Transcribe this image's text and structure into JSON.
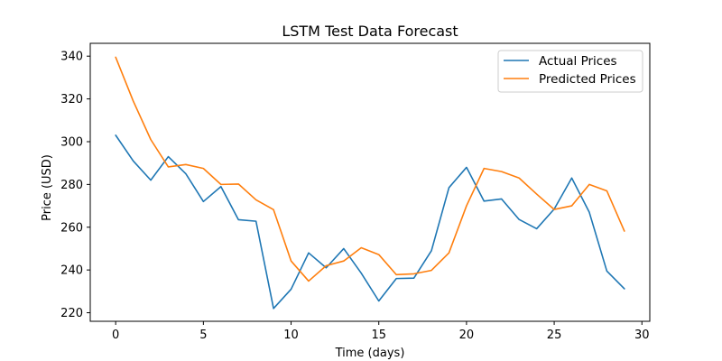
{
  "chart_data": {
    "type": "line",
    "title": "LSTM Test Data Forecast",
    "xlabel": "Time (days)",
    "ylabel": "Price (USD)",
    "xlim": [
      -1.45,
      30.45
    ],
    "ylim": [
      216,
      346
    ],
    "xticks": [
      0,
      5,
      10,
      15,
      20,
      25,
      30
    ],
    "yticks": [
      220,
      240,
      260,
      280,
      300,
      320,
      340
    ],
    "grid": false,
    "legend_position": "upper right",
    "x": [
      0,
      1,
      2,
      3,
      4,
      5,
      6,
      7,
      8,
      9,
      10,
      11,
      12,
      13,
      14,
      15,
      16,
      17,
      18,
      19,
      20,
      21,
      22,
      23,
      24,
      25,
      26,
      27,
      28,
      29
    ],
    "series": [
      {
        "name": "Actual Prices",
        "color": "#1f77b4",
        "values": [
          303,
          291,
          282,
          293,
          285,
          272,
          279,
          263.5,
          262.8,
          222,
          231,
          248,
          241,
          250,
          238.5,
          225.5,
          236,
          236.2,
          249,
          278.5,
          288,
          272.2,
          273.2,
          263.6,
          259.3,
          268.5,
          283,
          267,
          239.5,
          231.2
        ]
      },
      {
        "name": "Predicted Prices",
        "color": "#ff7f0e",
        "values": [
          339.5,
          319,
          301,
          288.2,
          289.3,
          287.5,
          280,
          280.2,
          272.8,
          268.2,
          244.2,
          234.8,
          242,
          244.2,
          250.4,
          247.2,
          237.8,
          238.2,
          239.8,
          248,
          270,
          287.5,
          286,
          283,
          275.5,
          268.3,
          270,
          280,
          277,
          258.2
        ]
      }
    ]
  }
}
